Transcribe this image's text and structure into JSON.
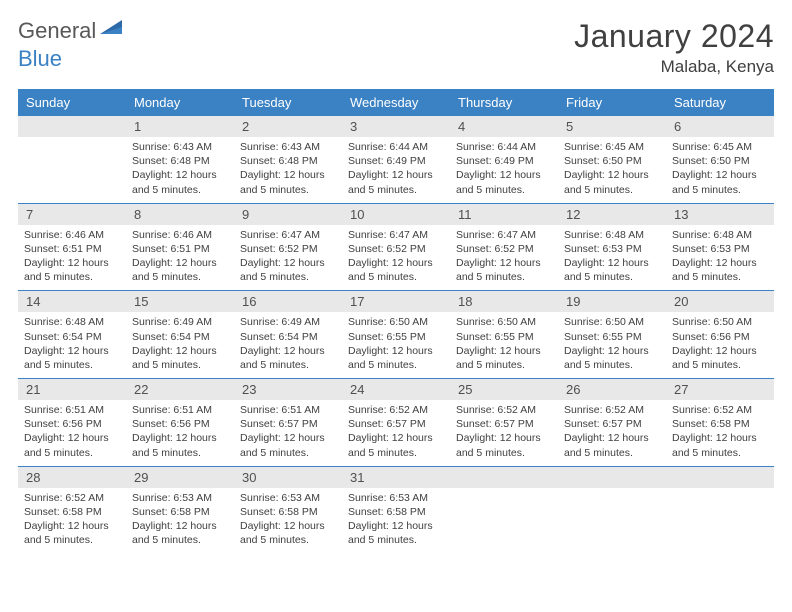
{
  "brand": {
    "part1": "General",
    "part2": "Blue"
  },
  "title": "January 2024",
  "location": "Malaba, Kenya",
  "colors": {
    "header_bg": "#3b82c4",
    "header_fg": "#ffffff",
    "daynum_bg": "#e8e8e8",
    "row_border": "#3b82c4",
    "text": "#404040",
    "brand_gray": "#585858",
    "brand_blue": "#3b82c4"
  },
  "weekdays": [
    "Sunday",
    "Monday",
    "Tuesday",
    "Wednesday",
    "Thursday",
    "Friday",
    "Saturday"
  ],
  "grid": {
    "first_weekday_index": 1,
    "days_in_month": 31
  },
  "days": {
    "1": {
      "sunrise": "6:43 AM",
      "sunset": "6:48 PM",
      "daylight": "12 hours and 5 minutes."
    },
    "2": {
      "sunrise": "6:43 AM",
      "sunset": "6:48 PM",
      "daylight": "12 hours and 5 minutes."
    },
    "3": {
      "sunrise": "6:44 AM",
      "sunset": "6:49 PM",
      "daylight": "12 hours and 5 minutes."
    },
    "4": {
      "sunrise": "6:44 AM",
      "sunset": "6:49 PM",
      "daylight": "12 hours and 5 minutes."
    },
    "5": {
      "sunrise": "6:45 AM",
      "sunset": "6:50 PM",
      "daylight": "12 hours and 5 minutes."
    },
    "6": {
      "sunrise": "6:45 AM",
      "sunset": "6:50 PM",
      "daylight": "12 hours and 5 minutes."
    },
    "7": {
      "sunrise": "6:46 AM",
      "sunset": "6:51 PM",
      "daylight": "12 hours and 5 minutes."
    },
    "8": {
      "sunrise": "6:46 AM",
      "sunset": "6:51 PM",
      "daylight": "12 hours and 5 minutes."
    },
    "9": {
      "sunrise": "6:47 AM",
      "sunset": "6:52 PM",
      "daylight": "12 hours and 5 minutes."
    },
    "10": {
      "sunrise": "6:47 AM",
      "sunset": "6:52 PM",
      "daylight": "12 hours and 5 minutes."
    },
    "11": {
      "sunrise": "6:47 AM",
      "sunset": "6:52 PM",
      "daylight": "12 hours and 5 minutes."
    },
    "12": {
      "sunrise": "6:48 AM",
      "sunset": "6:53 PM",
      "daylight": "12 hours and 5 minutes."
    },
    "13": {
      "sunrise": "6:48 AM",
      "sunset": "6:53 PM",
      "daylight": "12 hours and 5 minutes."
    },
    "14": {
      "sunrise": "6:48 AM",
      "sunset": "6:54 PM",
      "daylight": "12 hours and 5 minutes."
    },
    "15": {
      "sunrise": "6:49 AM",
      "sunset": "6:54 PM",
      "daylight": "12 hours and 5 minutes."
    },
    "16": {
      "sunrise": "6:49 AM",
      "sunset": "6:54 PM",
      "daylight": "12 hours and 5 minutes."
    },
    "17": {
      "sunrise": "6:50 AM",
      "sunset": "6:55 PM",
      "daylight": "12 hours and 5 minutes."
    },
    "18": {
      "sunrise": "6:50 AM",
      "sunset": "6:55 PM",
      "daylight": "12 hours and 5 minutes."
    },
    "19": {
      "sunrise": "6:50 AM",
      "sunset": "6:55 PM",
      "daylight": "12 hours and 5 minutes."
    },
    "20": {
      "sunrise": "6:50 AM",
      "sunset": "6:56 PM",
      "daylight": "12 hours and 5 minutes."
    },
    "21": {
      "sunrise": "6:51 AM",
      "sunset": "6:56 PM",
      "daylight": "12 hours and 5 minutes."
    },
    "22": {
      "sunrise": "6:51 AM",
      "sunset": "6:56 PM",
      "daylight": "12 hours and 5 minutes."
    },
    "23": {
      "sunrise": "6:51 AM",
      "sunset": "6:57 PM",
      "daylight": "12 hours and 5 minutes."
    },
    "24": {
      "sunrise": "6:52 AM",
      "sunset": "6:57 PM",
      "daylight": "12 hours and 5 minutes."
    },
    "25": {
      "sunrise": "6:52 AM",
      "sunset": "6:57 PM",
      "daylight": "12 hours and 5 minutes."
    },
    "26": {
      "sunrise": "6:52 AM",
      "sunset": "6:57 PM",
      "daylight": "12 hours and 5 minutes."
    },
    "27": {
      "sunrise": "6:52 AM",
      "sunset": "6:58 PM",
      "daylight": "12 hours and 5 minutes."
    },
    "28": {
      "sunrise": "6:52 AM",
      "sunset": "6:58 PM",
      "daylight": "12 hours and 5 minutes."
    },
    "29": {
      "sunrise": "6:53 AM",
      "sunset": "6:58 PM",
      "daylight": "12 hours and 5 minutes."
    },
    "30": {
      "sunrise": "6:53 AM",
      "sunset": "6:58 PM",
      "daylight": "12 hours and 5 minutes."
    },
    "31": {
      "sunrise": "6:53 AM",
      "sunset": "6:58 PM",
      "daylight": "12 hours and 5 minutes."
    }
  },
  "labels": {
    "sunrise": "Sunrise:",
    "sunset": "Sunset:",
    "daylight": "Daylight:"
  }
}
